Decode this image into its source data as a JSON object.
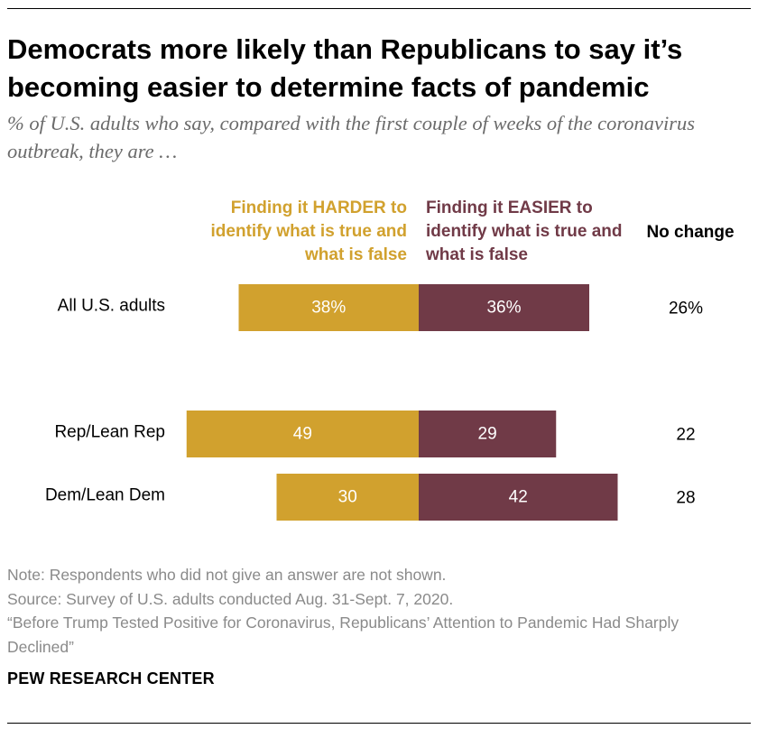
{
  "header": {
    "title": "Democrats more likely than Republicans to say it’s becoming easier to determine facts of pandemic",
    "subtitle": "% of U.S. adults who say, compared with the first couple of weeks of the coronavirus outbreak, they are …"
  },
  "columns": {
    "harder": "Finding it HARDER to identify what is true and what is false",
    "easier": "Finding it EASIER to identify what is true and what is false",
    "no_change": "No change"
  },
  "colors": {
    "harder": "#d1a12e",
    "easier": "#703a47",
    "bar_label": "#ffffff"
  },
  "chart_data": {
    "type": "bar",
    "orientation": "horizontal-diverging",
    "categories": [
      "All U.S. adults",
      "Rep/Lean Rep",
      "Dem/Lean Dem"
    ],
    "series": [
      {
        "name": "Finding it HARDER to identify what is true and what is false",
        "values": [
          38,
          49,
          30
        ],
        "labels": [
          "38%",
          "49",
          "30"
        ]
      },
      {
        "name": "Finding it EASIER to identify what is true and what is false",
        "values": [
          36,
          29,
          42
        ],
        "labels": [
          "36%",
          "29",
          "42"
        ]
      }
    ],
    "no_change": {
      "name": "No change",
      "values": [
        26,
        22,
        28
      ],
      "labels": [
        "26%",
        "22",
        "28"
      ]
    }
  },
  "footer": {
    "note": "Note: Respondents who did not give an answer are not shown.",
    "source": "Source: Survey of U.S. adults conducted Aug. 31-Sept. 7, 2020.",
    "report": "“Before Trump Tested Positive for Coronavirus, Republicans’ Attention to Pandemic Had Sharply Declined”",
    "brand": "PEW RESEARCH CENTER"
  }
}
